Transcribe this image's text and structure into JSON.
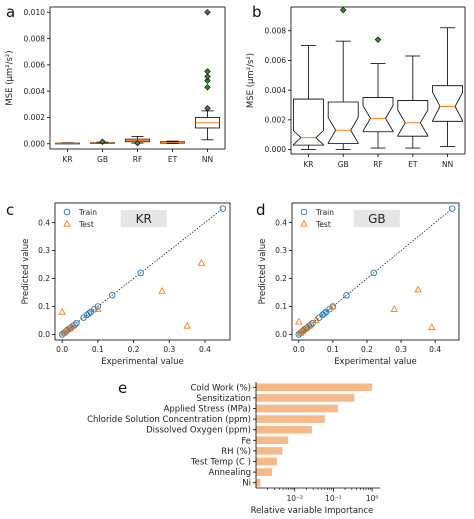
{
  "figure": {
    "panel_labels": [
      "a",
      "b",
      "c",
      "d",
      "e"
    ]
  },
  "colors": {
    "box_median": "#ff7f0e",
    "outlier_fill": "#2e8b2e",
    "train_marker": "#1f77b4",
    "test_marker": "#ff7f0e",
    "bar_fill": "#f5b98a",
    "title_box": "#e6e6e6"
  },
  "chart_data": [
    {
      "panel": "a",
      "type": "box",
      "title": "",
      "xlabel": "",
      "ylabel": "MSE (μm²/s²)",
      "categories": [
        "KR",
        "GB",
        "RF",
        "ET",
        "NN"
      ],
      "ylim": [
        -0.0004,
        0.0104
      ],
      "yticks": [
        0.0,
        0.002,
        0.004,
        0.006,
        0.008,
        0.01
      ],
      "ytick_labels": [
        "0.000",
        "0.002",
        "0.004",
        "0.006",
        "0.008",
        "0.010"
      ],
      "boxes": [
        {
          "label": "KR",
          "q1": 3e-05,
          "median": 4e-05,
          "q3": 5e-05,
          "whislo": 1e-05,
          "whishi": 8e-05,
          "outliers": []
        },
        {
          "label": "GB",
          "q1": 3e-05,
          "median": 5e-05,
          "q3": 8e-05,
          "whislo": 1e-05,
          "whishi": 0.00012,
          "outliers": [
            0.00015
          ]
        },
        {
          "label": "RF",
          "q1": 0.00015,
          "median": 0.00025,
          "q3": 0.00035,
          "whislo": 5e-05,
          "whishi": 0.00055,
          "outliers": [
            5e-05
          ]
        },
        {
          "label": "ET",
          "q1": 5e-05,
          "median": 0.0001,
          "q3": 0.00015,
          "whislo": 2e-05,
          "whishi": 0.0002,
          "outliers": []
        },
        {
          "label": "NN",
          "q1": 0.0012,
          "median": 0.0016,
          "q3": 0.002,
          "whislo": 0.0003,
          "whishi": 0.0025,
          "outliers": [
            0.0027,
            0.0043,
            0.0048,
            0.0051,
            0.0055,
            0.01
          ]
        }
      ]
    },
    {
      "panel": "b",
      "type": "box",
      "title": "",
      "xlabel": "",
      "ylabel": "MSE (μm²/s²)",
      "categories": [
        "KR",
        "GB",
        "RF",
        "ET",
        "NN"
      ],
      "ylim": [
        -0.0003,
        0.0096
      ],
      "yticks": [
        0.0,
        0.002,
        0.004,
        0.006,
        0.008
      ],
      "ytick_labels": [
        "0.000",
        "0.002",
        "0.004",
        "0.006",
        "0.008"
      ],
      "boxes": [
        {
          "label": "KR",
          "q1": 0.0003,
          "median": 0.0008,
          "q3": 0.0034,
          "whislo": 0.0,
          "whishi": 0.007,
          "outliers": []
        },
        {
          "label": "GB",
          "q1": 0.0004,
          "median": 0.0013,
          "q3": 0.0032,
          "whislo": 0.0,
          "whishi": 0.0073,
          "outliers": [
            0.0094
          ]
        },
        {
          "label": "RF",
          "q1": 0.0012,
          "median": 0.0021,
          "q3": 0.0035,
          "whislo": 0.0001,
          "whishi": 0.0058,
          "outliers": [
            0.0074
          ]
        },
        {
          "label": "ET",
          "q1": 0.0009,
          "median": 0.0018,
          "q3": 0.0033,
          "whislo": 0.0001,
          "whishi": 0.0063,
          "outliers": []
        },
        {
          "label": "NN",
          "q1": 0.0019,
          "median": 0.0029,
          "q3": 0.0043,
          "whislo": 0.0002,
          "whishi": 0.0082,
          "outliers": []
        }
      ]
    },
    {
      "panel": "c",
      "type": "scatter",
      "title": "KR",
      "xlabel": "Experimental value",
      "ylabel": "Predicted value",
      "xlim": [
        -0.02,
        0.47
      ],
      "ylim": [
        -0.02,
        0.47
      ],
      "xticks": [
        0.0,
        0.1,
        0.2,
        0.3,
        0.4
      ],
      "yticks": [
        0.0,
        0.1,
        0.2,
        0.3,
        0.4
      ],
      "legend": [
        "Train",
        "Test"
      ],
      "legend_position": "top-left",
      "diagonal": true,
      "series": [
        {
          "name": "Train",
          "marker": "circle",
          "points": [
            [
              0.0,
              0.0
            ],
            [
              0.005,
              0.005
            ],
            [
              0.01,
              0.01
            ],
            [
              0.012,
              0.012
            ],
            [
              0.015,
              0.016
            ],
            [
              0.02,
              0.02
            ],
            [
              0.025,
              0.024
            ],
            [
              0.03,
              0.03
            ],
            [
              0.035,
              0.034
            ],
            [
              0.04,
              0.04
            ],
            [
              0.06,
              0.06
            ],
            [
              0.07,
              0.07
            ],
            [
              0.075,
              0.075
            ],
            [
              0.08,
              0.08
            ],
            [
              0.09,
              0.09
            ],
            [
              0.1,
              0.1
            ],
            [
              0.14,
              0.14
            ],
            [
              0.22,
              0.22
            ],
            [
              0.45,
              0.45
            ]
          ]
        },
        {
          "name": "Test",
          "marker": "triangle",
          "points": [
            [
              0.0,
              0.08
            ],
            [
              0.005,
              0.005
            ],
            [
              0.01,
              0.012
            ],
            [
              0.02,
              0.02
            ],
            [
              0.03,
              0.03
            ],
            [
              0.1,
              0.09
            ],
            [
              0.28,
              0.155
            ],
            [
              0.35,
              0.03
            ],
            [
              0.39,
              0.255
            ]
          ]
        }
      ]
    },
    {
      "panel": "d",
      "type": "scatter",
      "title": "GB",
      "xlabel": "Experimental value",
      "ylabel": "Predicted value",
      "xlim": [
        -0.02,
        0.47
      ],
      "ylim": [
        -0.02,
        0.47
      ],
      "xticks": [
        0.0,
        0.1,
        0.2,
        0.3,
        0.4
      ],
      "yticks": [
        0.0,
        0.1,
        0.2,
        0.3,
        0.4
      ],
      "legend": [
        "Train",
        "Test"
      ],
      "legend_position": "top-left",
      "diagonal": true,
      "series": [
        {
          "name": "Train",
          "marker": "circle",
          "points": [
            [
              0.0,
              0.0
            ],
            [
              0.005,
              0.005
            ],
            [
              0.01,
              0.01
            ],
            [
              0.012,
              0.012
            ],
            [
              0.015,
              0.016
            ],
            [
              0.02,
              0.02
            ],
            [
              0.025,
              0.024
            ],
            [
              0.03,
              0.03
            ],
            [
              0.035,
              0.034
            ],
            [
              0.04,
              0.04
            ],
            [
              0.06,
              0.06
            ],
            [
              0.07,
              0.07
            ],
            [
              0.075,
              0.075
            ],
            [
              0.08,
              0.08
            ],
            [
              0.09,
              0.09
            ],
            [
              0.1,
              0.1
            ],
            [
              0.14,
              0.14
            ],
            [
              0.22,
              0.22
            ],
            [
              0.45,
              0.45
            ]
          ]
        },
        {
          "name": "Test",
          "marker": "triangle",
          "points": [
            [
              0.0,
              0.045
            ],
            [
              0.005,
              0.005
            ],
            [
              0.01,
              0.01
            ],
            [
              0.02,
              0.02
            ],
            [
              0.03,
              0.03
            ],
            [
              0.05,
              0.05
            ],
            [
              0.1,
              0.1
            ],
            [
              0.28,
              0.09
            ],
            [
              0.35,
              0.16
            ],
            [
              0.39,
              0.025
            ]
          ]
        }
      ]
    },
    {
      "panel": "e",
      "type": "bar",
      "orientation": "horizontal",
      "title": "",
      "xlabel": "Relative variable Importance",
      "ylabel": "",
      "xscale": "log",
      "xlim": [
        0.001,
        1.6
      ],
      "xticks": [
        0.01,
        0.1,
        1
      ],
      "xtick_labels": [
        "10⁻²",
        "10⁻¹",
        "10⁰"
      ],
      "categories": [
        "Cold Work (%)",
        "Sensitization",
        "Applied Stress (MPa)",
        "Chloride Solution Concentration (ppm)",
        "Dissolved Oxygen (ppm)",
        "Fe",
        "RH (%)",
        "Test Temp (C )",
        "Annealing",
        "Ni"
      ],
      "values": [
        1.0,
        0.35,
        0.13,
        0.06,
        0.028,
        0.0068,
        0.0048,
        0.0035,
        0.0026,
        0.0013
      ]
    }
  ]
}
